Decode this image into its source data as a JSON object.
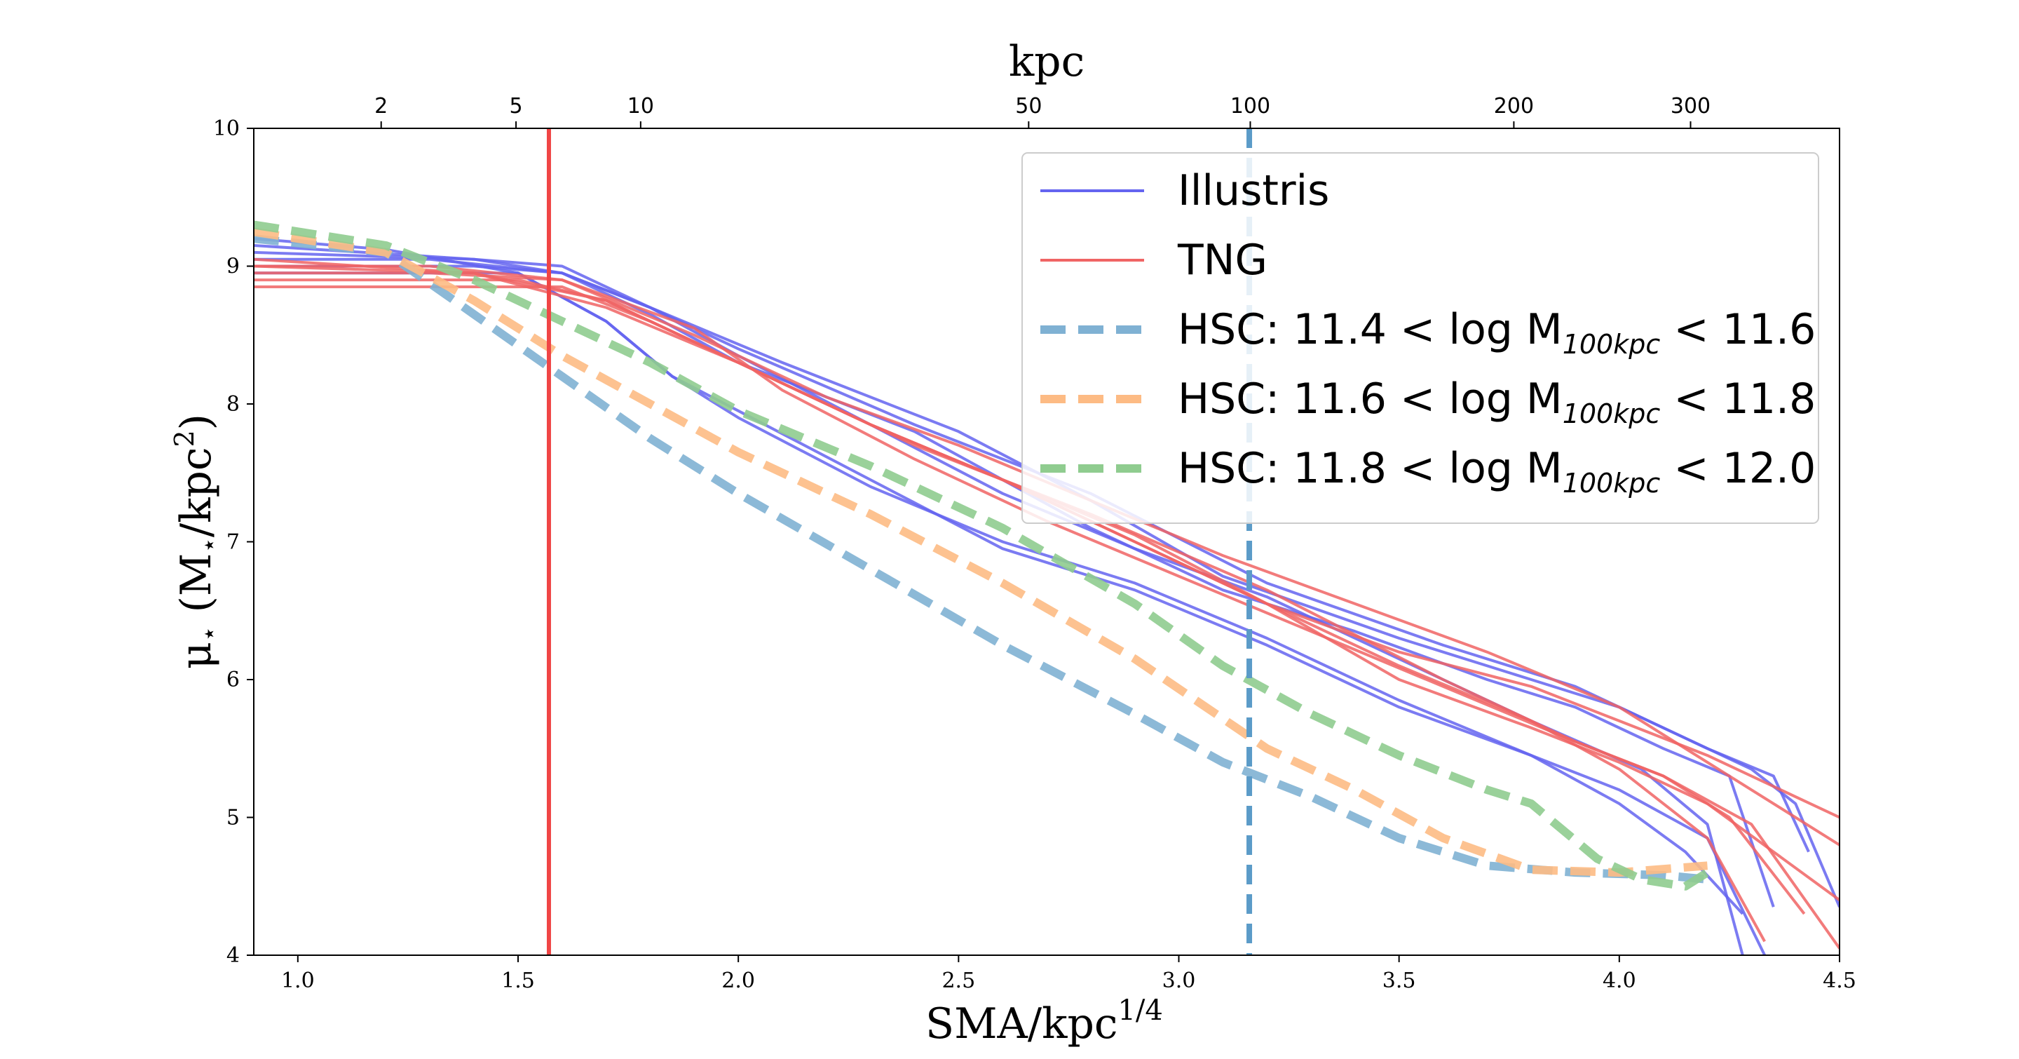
{
  "chart_data": {
    "type": "line",
    "xlabel": "SMA/kpc^1/4",
    "ylabel": "μ⋆ (M⋆/kpc²)",
    "top_xlabel": "kpc",
    "xlim": [
      0.9,
      4.5
    ],
    "ylim": [
      4,
      10
    ],
    "x_ticks": [
      1.0,
      1.5,
      2.0,
      2.5,
      3.0,
      3.5,
      4.0,
      4.5
    ],
    "x_tick_labels": [
      "1.0",
      "1.5",
      "2.0",
      "2.5",
      "3.0",
      "3.5",
      "4.0",
      "4.5"
    ],
    "y_ticks": [
      4,
      5,
      6,
      7,
      8,
      9,
      10
    ],
    "y_tick_labels": [
      "4",
      "5",
      "6",
      "7",
      "8",
      "9",
      "10"
    ],
    "top_ticks_kpc": [
      2,
      5,
      10,
      50,
      100,
      200,
      300
    ],
    "top_tick_labels": [
      "2",
      "5",
      "10",
      "50",
      "100",
      "200",
      "300"
    ],
    "grid": false,
    "legend_position": "top-right",
    "vlines": [
      {
        "x": 1.57,
        "color": "#f04545",
        "style": "solid"
      },
      {
        "x": 3.16,
        "color": "#5b9bc8",
        "style": "dashed"
      }
    ],
    "legend": [
      {
        "label": "Illustris",
        "color": "#6464f0",
        "style": "solid"
      },
      {
        "label": "TNG",
        "color": "#f06464",
        "style": "solid"
      },
      {
        "label": "HSC: 11.4 < log M",
        "sub": "100kpc",
        "tail": " < 11.6",
        "color": "#7fb1d3",
        "style": "dashed"
      },
      {
        "label": "HSC: 11.6 < log M",
        "sub": "100kpc",
        "tail": " < 11.8",
        "color": "#fdbb84",
        "style": "dashed"
      },
      {
        "label": "HSC: 11.8 < log M",
        "sub": "100kpc",
        "tail": " < 12.0",
        "color": "#8fcc8f",
        "style": "dashed"
      }
    ],
    "series": [
      {
        "group": "Illustris",
        "color": "#6464f0",
        "x": [
          0.9,
          1.2,
          1.5,
          1.7,
          1.85,
          2.0,
          2.3,
          2.6,
          2.9,
          3.2,
          3.5,
          3.8,
          4.0,
          4.15,
          4.28
        ],
        "y": [
          9.2,
          9.12,
          8.95,
          8.6,
          8.2,
          7.9,
          7.4,
          7.0,
          6.7,
          6.3,
          5.85,
          5.45,
          5.1,
          4.75,
          4.3
        ]
      },
      {
        "group": "Illustris",
        "color": "#6464f0",
        "x": [
          0.9,
          1.3,
          1.6,
          1.8,
          2.0,
          2.3,
          2.6,
          2.9,
          3.2,
          3.5,
          3.8,
          4.05,
          4.2,
          4.28
        ],
        "y": [
          9.05,
          9.05,
          8.95,
          8.7,
          8.35,
          7.85,
          7.35,
          6.95,
          6.6,
          6.15,
          5.7,
          5.35,
          4.95,
          4.0
        ]
      },
      {
        "group": "Illustris",
        "color": "#6464f0",
        "x": [
          0.9,
          1.4,
          1.6,
          1.8,
          2.1,
          2.5,
          2.8,
          3.1,
          3.5,
          3.8,
          4.0,
          4.2,
          4.35,
          4.43
        ],
        "y": [
          9.1,
          9.05,
          9.0,
          8.7,
          8.3,
          7.8,
          7.3,
          6.75,
          6.3,
          6.0,
          5.8,
          5.5,
          5.3,
          4.75
        ]
      },
      {
        "group": "Illustris",
        "color": "#6464f0",
        "x": [
          0.9,
          1.4,
          1.6,
          1.8,
          2.0,
          2.4,
          2.8,
          3.1,
          3.4,
          3.7,
          3.9,
          4.1,
          4.25,
          4.35
        ],
        "y": [
          9.0,
          9.0,
          8.95,
          8.65,
          8.3,
          7.8,
          7.1,
          6.65,
          6.35,
          6.0,
          5.8,
          5.5,
          5.3,
          4.35
        ]
      },
      {
        "group": "Illustris",
        "color": "#6464f0",
        "x": [
          0.9,
          1.5,
          1.7,
          1.85,
          2.0,
          2.3,
          2.6,
          2.9,
          3.2,
          3.5,
          3.8,
          4.0,
          4.2,
          4.33
        ],
        "y": [
          8.95,
          8.95,
          8.6,
          8.2,
          7.95,
          7.45,
          6.95,
          6.65,
          6.25,
          5.8,
          5.45,
          5.2,
          4.85,
          4.0
        ]
      },
      {
        "group": "Illustris",
        "color": "#6464f0",
        "x": [
          0.9,
          1.4,
          1.6,
          1.8,
          2.0,
          2.4,
          2.8,
          3.2,
          3.6,
          3.9,
          4.1,
          4.3,
          4.4,
          4.5
        ],
        "y": [
          9.15,
          9.05,
          8.95,
          8.7,
          8.4,
          7.85,
          7.35,
          6.7,
          6.25,
          5.95,
          5.65,
          5.35,
          5.1,
          4.35
        ]
      },
      {
        "group": "TNG",
        "color": "#f06464",
        "x": [
          0.9,
          1.3,
          1.6,
          1.8,
          2.0,
          2.4,
          2.8,
          3.2,
          3.6,
          3.9,
          4.1,
          4.3,
          4.5
        ],
        "y": [
          8.85,
          8.85,
          8.85,
          8.6,
          8.3,
          7.7,
          7.2,
          6.65,
          6.0,
          5.55,
          5.3,
          4.95,
          4.05
        ]
      },
      {
        "group": "TNG",
        "color": "#f06464",
        "x": [
          0.9,
          1.3,
          1.6,
          1.9,
          2.2,
          2.5,
          2.8,
          3.1,
          3.4,
          3.7,
          4.0,
          4.2,
          4.5
        ],
        "y": [
          9.0,
          9.0,
          8.9,
          8.5,
          8.05,
          7.7,
          7.3,
          6.9,
          6.55,
          6.2,
          5.8,
          5.4,
          4.8
        ]
      },
      {
        "group": "TNG",
        "color": "#f06464",
        "x": [
          0.9,
          1.4,
          1.7,
          2.0,
          2.3,
          2.6,
          2.9,
          3.2,
          3.5,
          3.8,
          4.0,
          4.2,
          4.35,
          4.5
        ],
        "y": [
          9.0,
          8.95,
          8.75,
          8.3,
          7.85,
          7.45,
          7.0,
          6.55,
          6.0,
          5.65,
          5.4,
          5.1,
          4.75,
          4.4
        ]
      },
      {
        "group": "TNG",
        "color": "#f06464",
        "x": [
          0.9,
          1.4,
          1.7,
          2.0,
          2.3,
          2.6,
          2.9,
          3.2,
          3.5,
          3.8,
          4.0,
          4.2,
          4.33
        ],
        "y": [
          9.05,
          8.95,
          8.7,
          8.3,
          7.85,
          7.45,
          7.05,
          6.55,
          6.1,
          5.7,
          5.35,
          4.85,
          4.1
        ]
      },
      {
        "group": "TNG",
        "color": "#f06464",
        "x": [
          0.9,
          1.3,
          1.6,
          1.9,
          2.1,
          2.4,
          2.7,
          3.0,
          3.3,
          3.6,
          3.9,
          4.1,
          4.25,
          4.42
        ],
        "y": [
          8.95,
          8.95,
          8.9,
          8.55,
          8.1,
          7.6,
          7.15,
          6.75,
          6.35,
          5.95,
          5.55,
          5.3,
          5.0,
          4.3
        ]
      },
      {
        "group": "TNG",
        "color": "#f06464",
        "x": [
          0.9,
          1.5,
          1.7,
          2.0,
          2.3,
          2.6,
          2.9,
          3.2,
          3.5,
          3.8,
          4.0,
          4.2,
          4.5
        ],
        "y": [
          8.9,
          8.9,
          8.75,
          8.3,
          7.85,
          7.45,
          7.0,
          6.55,
          6.2,
          5.95,
          5.7,
          5.45,
          5.0
        ]
      },
      {
        "group": "HSC 11.4-11.6",
        "color": "#7fb1d3",
        "x": [
          0.9,
          1.2,
          1.4,
          1.6,
          1.8,
          2.0,
          2.3,
          2.6,
          2.9,
          3.1,
          3.3,
          3.5,
          3.7,
          3.9,
          4.1,
          4.2
        ],
        "y": [
          9.2,
          9.1,
          8.65,
          8.2,
          7.75,
          7.35,
          6.8,
          6.25,
          5.75,
          5.4,
          5.15,
          4.85,
          4.65,
          4.6,
          4.58,
          4.55
        ]
      },
      {
        "group": "HSC 11.6-11.8",
        "color": "#fdbb84",
        "x": [
          0.9,
          1.2,
          1.4,
          1.6,
          1.8,
          2.0,
          2.3,
          2.6,
          2.9,
          3.2,
          3.4,
          3.6,
          3.8,
          4.0,
          4.2
        ],
        "y": [
          9.25,
          9.1,
          8.75,
          8.35,
          8.0,
          7.65,
          7.2,
          6.7,
          6.15,
          5.5,
          5.2,
          4.85,
          4.62,
          4.6,
          4.65
        ]
      },
      {
        "group": "HSC 11.8-12.0",
        "color": "#8fcc8f",
        "x": [
          0.9,
          1.2,
          1.4,
          1.6,
          1.8,
          2.0,
          2.3,
          2.6,
          2.9,
          3.1,
          3.3,
          3.5,
          3.7,
          3.8,
          3.95,
          4.05,
          4.15,
          4.2
        ],
        "y": [
          9.3,
          9.15,
          8.9,
          8.6,
          8.3,
          7.95,
          7.55,
          7.1,
          6.55,
          6.1,
          5.75,
          5.45,
          5.2,
          5.1,
          4.7,
          4.55,
          4.5,
          4.6
        ]
      }
    ]
  }
}
